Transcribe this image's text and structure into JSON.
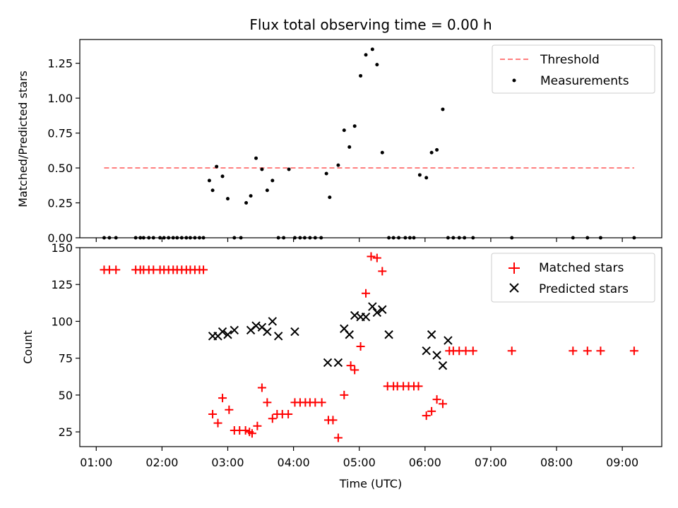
{
  "chart_data": [
    {
      "type": "scatter",
      "title": "Flux total observing time = 0.00 h",
      "xlabel": "",
      "ylabel": "Matched/Predicted stars",
      "ylim": [
        0,
        1.42
      ],
      "xlim": [
        0.75,
        9.6
      ],
      "yticks": [
        "0.00",
        "0.25",
        "0.50",
        "0.75",
        "1.00",
        "1.25"
      ],
      "ytick_values": [
        0,
        0.25,
        0.5,
        0.75,
        1.0,
        1.25
      ],
      "grid": false,
      "legend_position": "top-right",
      "series": [
        {
          "name": "Threshold",
          "style": "dashed-line",
          "color": "#ff7f7f",
          "x": [
            1.12,
            9.18
          ],
          "y": [
            0.5,
            0.5
          ]
        },
        {
          "name": "Measurements",
          "style": "dot",
          "color": "#000000",
          "x": [
            1.12,
            1.2,
            1.3,
            1.6,
            1.67,
            1.72,
            1.8,
            1.87,
            1.97,
            2.03,
            2.1,
            2.17,
            2.23,
            2.3,
            2.37,
            2.43,
            2.5,
            2.57,
            2.63,
            2.72,
            2.77,
            2.83,
            2.92,
            3.0,
            3.1,
            3.2,
            3.28,
            3.35,
            3.43,
            3.52,
            3.6,
            3.68,
            3.77,
            3.85,
            3.93,
            4.02,
            4.1,
            4.17,
            4.25,
            4.33,
            4.42,
            4.5,
            4.55,
            4.68,
            4.77,
            4.85,
            4.93,
            5.02,
            5.1,
            5.2,
            5.27,
            5.35,
            5.45,
            5.52,
            5.6,
            5.7,
            5.77,
            5.83,
            5.92,
            6.02,
            6.1,
            6.18,
            6.27,
            6.35,
            6.43,
            6.52,
            6.6,
            6.73,
            7.32,
            8.25,
            8.47,
            8.67,
            9.18
          ],
          "y": [
            0,
            0,
            0,
            0,
            0,
            0,
            0,
            0,
            0,
            0,
            0,
            0,
            0,
            0,
            0,
            0,
            0,
            0,
            0,
            0.41,
            0.34,
            0.51,
            0.44,
            0.28,
            0,
            0,
            0.25,
            0.3,
            0.57,
            0.49,
            0.34,
            0.41,
            0,
            0,
            0.49,
            0,
            0,
            0,
            0,
            0,
            0,
            0.46,
            0.29,
            0.52,
            0.77,
            0.65,
            0.8,
            1.16,
            1.31,
            1.35,
            1.24,
            0.61,
            0,
            0,
            0,
            0,
            0,
            0,
            0.45,
            0.43,
            0.61,
            0.63,
            0.92,
            0,
            0,
            0,
            0,
            0,
            0,
            0,
            0,
            0,
            0
          ]
        }
      ]
    },
    {
      "type": "scatter",
      "title": "",
      "xlabel": "Time (UTC)",
      "ylabel": "Count",
      "ylim": [
        15,
        150
      ],
      "xlim": [
        0.75,
        9.6
      ],
      "yticks": [
        "25",
        "50",
        "75",
        "100",
        "125",
        "150"
      ],
      "ytick_values": [
        25,
        50,
        75,
        100,
        125,
        150
      ],
      "xticks": [
        "01:00",
        "02:00",
        "03:00",
        "04:00",
        "05:00",
        "06:00",
        "07:00",
        "08:00",
        "09:00"
      ],
      "xtick_values": [
        1,
        2,
        3,
        4,
        5,
        6,
        7,
        8,
        9
      ],
      "grid": false,
      "legend_position": "top-right",
      "series": [
        {
          "name": "Matched stars",
          "style": "plus",
          "color": "#ff0000",
          "x": [
            1.12,
            1.2,
            1.3,
            1.6,
            1.67,
            1.72,
            1.8,
            1.87,
            1.97,
            2.03,
            2.1,
            2.17,
            2.23,
            2.3,
            2.37,
            2.43,
            2.5,
            2.57,
            2.63,
            2.77,
            2.85,
            2.92,
            3.02,
            3.1,
            3.18,
            3.27,
            3.33,
            3.37,
            3.45,
            3.52,
            3.6,
            3.68,
            3.75,
            3.83,
            3.92,
            4.02,
            4.1,
            4.18,
            4.25,
            4.33,
            4.43,
            4.53,
            4.6,
            4.68,
            4.77,
            4.87,
            4.93,
            5.02,
            5.1,
            5.18,
            5.27,
            5.35,
            5.43,
            5.52,
            5.58,
            5.67,
            5.75,
            5.83,
            5.9,
            6.02,
            6.1,
            6.18,
            6.27,
            6.37,
            6.43,
            6.52,
            6.62,
            6.73,
            7.32,
            8.25,
            8.47,
            8.67,
            9.18
          ],
          "y": [
            135,
            135,
            135,
            135,
            135,
            135,
            135,
            135,
            135,
            135,
            135,
            135,
            135,
            135,
            135,
            135,
            135,
            135,
            135,
            37,
            31,
            48,
            40,
            26,
            26,
            26,
            25,
            24,
            29,
            55,
            45,
            34,
            37,
            37,
            37,
            45,
            45,
            45,
            45,
            45,
            45,
            33,
            33,
            21,
            50,
            70,
            67,
            83,
            119,
            144,
            143,
            134,
            56,
            56,
            56,
            56,
            56,
            56,
            56,
            36,
            39,
            47,
            44,
            80,
            80,
            80,
            80,
            80,
            80,
            80,
            80,
            80,
            80
          ]
        },
        {
          "name": "Predicted stars",
          "style": "x",
          "color": "#000000",
          "x": [
            2.77,
            2.85,
            2.92,
            3.0,
            3.1,
            3.35,
            3.43,
            3.52,
            3.6,
            3.68,
            3.77,
            4.02,
            4.52,
            4.68,
            4.77,
            4.85,
            4.93,
            5.02,
            5.1,
            5.2,
            5.27,
            5.35,
            5.45,
            6.02,
            6.1,
            6.18,
            6.27,
            6.35
          ],
          "y": [
            90,
            90,
            93,
            91,
            94,
            94,
            97,
            96,
            93,
            100,
            90,
            93,
            72,
            72,
            95,
            91,
            104,
            103,
            103,
            110,
            106,
            108,
            91,
            80,
            91,
            77,
            70,
            87
          ]
        }
      ]
    }
  ]
}
